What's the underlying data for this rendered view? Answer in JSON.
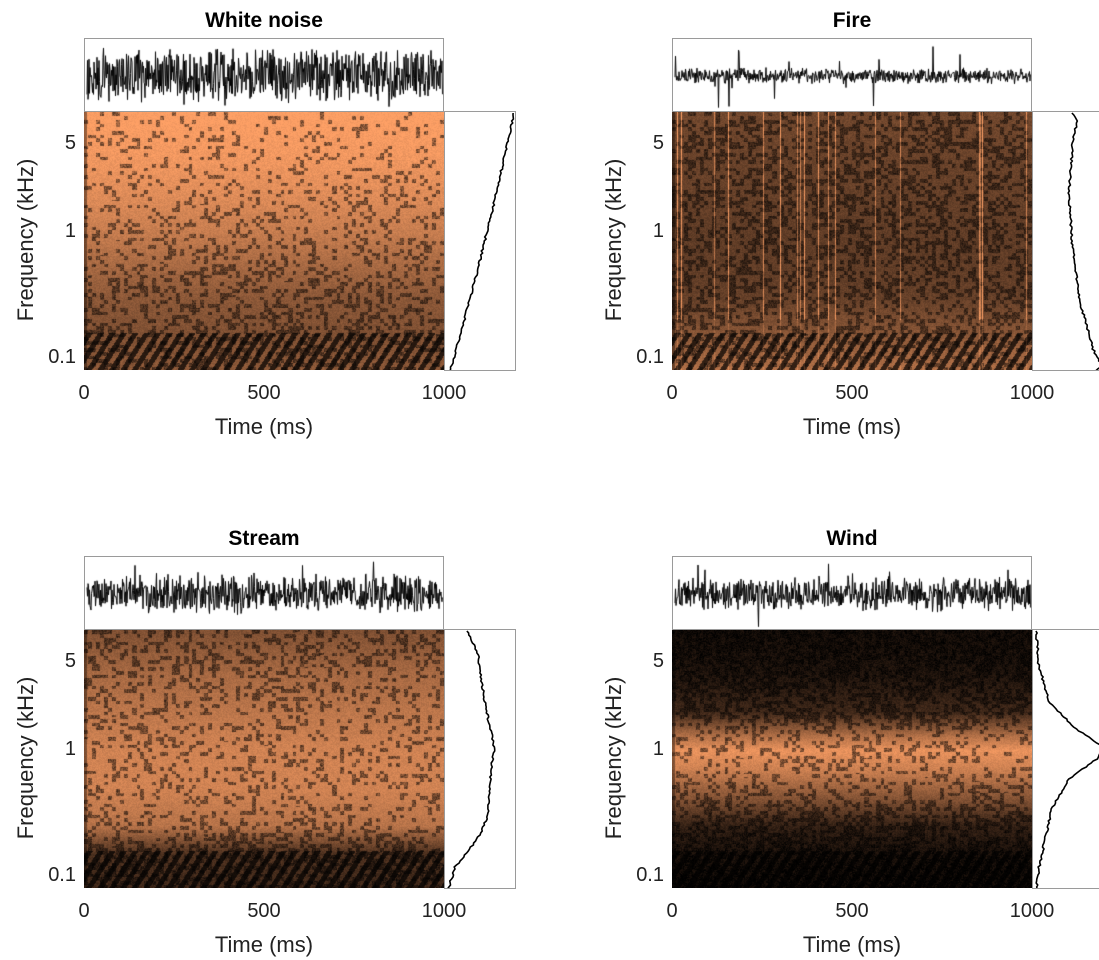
{
  "chart_data": [
    {
      "type": "spectrogram",
      "title": "White noise",
      "xlabel": "Time (ms)",
      "ylabel": "Frequency (kHz)",
      "xticks": [
        "0",
        "500",
        "1000"
      ],
      "xlim": [
        0,
        1000
      ],
      "yticks": [
        "5",
        "1",
        "0.1"
      ],
      "ytick_values": [
        5,
        1,
        0.1
      ],
      "yscale": "log",
      "ylim": [
        0.08,
        9
      ],
      "colormap": "copper",
      "waveform_amplitude": 0.95,
      "waveform_spikiness": 0.05,
      "profile": {
        "freq_khz": [
          0.08,
          0.1,
          0.2,
          0.5,
          1,
          2,
          4,
          6,
          8,
          9
        ],
        "power": [
          0.05,
          0.1,
          0.25,
          0.45,
          0.58,
          0.72,
          0.84,
          0.92,
          0.97,
          0.98
        ]
      },
      "energy_by_freq": {
        "freq_khz": [
          0.08,
          0.15,
          0.3,
          0.6,
          1,
          2,
          4,
          9
        ],
        "level": [
          0.55,
          0.5,
          0.55,
          0.68,
          0.78,
          0.88,
          0.95,
          1.0
        ]
      }
    },
    {
      "type": "spectrogram",
      "title": "Fire",
      "xlabel": "Time (ms)",
      "ylabel": "Frequency (kHz)",
      "xticks": [
        "0",
        "500",
        "1000"
      ],
      "xlim": [
        0,
        1000
      ],
      "yticks": [
        "5",
        "1",
        "0.1"
      ],
      "ytick_values": [
        5,
        1,
        0.1
      ],
      "yscale": "log",
      "ylim": [
        0.08,
        9
      ],
      "colormap": "copper",
      "waveform_amplitude": 0.25,
      "waveform_spikiness": 0.9,
      "profile": {
        "freq_khz": [
          0.08,
          0.09,
          0.12,
          0.3,
          0.8,
          2,
          5,
          8,
          9
        ],
        "power": [
          0.9,
          0.98,
          0.85,
          0.65,
          0.55,
          0.5,
          0.55,
          0.62,
          0.55
        ]
      },
      "energy_by_freq": {
        "freq_khz": [
          0.08,
          0.15,
          0.3,
          0.6,
          1,
          2,
          4,
          9
        ],
        "level": [
          0.7,
          0.55,
          0.4,
          0.38,
          0.38,
          0.4,
          0.42,
          0.45
        ]
      }
    },
    {
      "type": "spectrogram",
      "title": "Stream",
      "xlabel": "Time (ms)",
      "ylabel": "Frequency (kHz)",
      "xticks": [
        "0",
        "500",
        "1000"
      ],
      "xlim": [
        0,
        1000
      ],
      "yticks": [
        "5",
        "1",
        "0.1"
      ],
      "ytick_values": [
        5,
        1,
        0.1
      ],
      "yscale": "log",
      "ylim": [
        0.08,
        9
      ],
      "colormap": "copper",
      "waveform_amplitude": 0.65,
      "waveform_spikiness": 0.3,
      "profile": {
        "freq_khz": [
          0.08,
          0.12,
          0.2,
          0.3,
          0.5,
          0.8,
          1,
          1.5,
          2.5,
          4,
          6,
          9
        ],
        "power": [
          0.02,
          0.12,
          0.45,
          0.6,
          0.62,
          0.66,
          0.7,
          0.64,
          0.55,
          0.5,
          0.45,
          0.3
        ]
      },
      "energy_by_freq": {
        "freq_khz": [
          0.08,
          0.15,
          0.25,
          0.5,
          1,
          2,
          4,
          9
        ],
        "level": [
          0.25,
          0.3,
          0.72,
          0.82,
          0.82,
          0.74,
          0.66,
          0.5
        ]
      }
    },
    {
      "type": "spectrogram",
      "title": "Wind",
      "xlabel": "Time (ms)",
      "ylabel": "Frequency (kHz)",
      "xticks": [
        "0",
        "500",
        "1000"
      ],
      "xlim": [
        0,
        1000
      ],
      "yticks": [
        "5",
        "1",
        "0.1"
      ],
      "ytick_values": [
        5,
        1,
        0.1
      ],
      "yscale": "log",
      "ylim": [
        0.08,
        9
      ],
      "colormap": "copper",
      "waveform_amplitude": 0.55,
      "waveform_spikiness": 0.35,
      "profile": {
        "freq_khz": [
          0.08,
          0.12,
          0.2,
          0.35,
          0.6,
          0.9,
          1.1,
          1.5,
          2.5,
          5,
          9
        ],
        "power": [
          0.02,
          0.06,
          0.15,
          0.25,
          0.5,
          0.95,
          0.98,
          0.6,
          0.2,
          0.05,
          0.02
        ]
      },
      "energy_by_freq": {
        "freq_khz": [
          0.08,
          0.15,
          0.25,
          0.4,
          0.7,
          1,
          1.3,
          2,
          4,
          9
        ],
        "level": [
          0.05,
          0.1,
          0.2,
          0.5,
          0.8,
          0.92,
          0.7,
          0.25,
          0.12,
          0.08
        ]
      }
    }
  ]
}
